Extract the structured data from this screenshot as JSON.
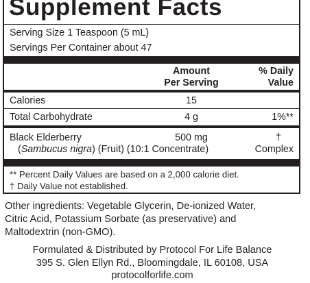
{
  "panel": {
    "title": "Supplement Facts",
    "serving_size": "Serving Size 1 Teaspoon (5 mL)",
    "servings_per_container": "Servings Per Container about 47",
    "header": {
      "amount_line1": "Amount",
      "amount_line2": "Per Serving",
      "dv_line1": "% Daily",
      "dv_line2": "Value"
    },
    "rows": [
      {
        "name": "Calories",
        "amount": "15",
        "dv": ""
      },
      {
        "name": "Total Carbohydrate",
        "amount": "4 g",
        "dv": "1%**"
      }
    ],
    "elderberry": {
      "name": "Black Elderberry",
      "open_paren": "(",
      "latin": "Sambucus nigra",
      "detail": ") (Fruit) (10:1 Concentrate)",
      "amount": "500 mg",
      "dv_symbol": "†",
      "dv_note": "Complex"
    },
    "footnotes": [
      "** Percent Daily Values are based on a 2,000 calorie diet.",
      "† Daily Value not established."
    ]
  },
  "other_ingredients": [
    "Other ingredients: Vegetable Glycerin, De-ionized Water,",
    "Citric Acid, Potassium Sorbate (as preservative) and",
    "Maltodextrin (non-GMO)."
  ],
  "distributor": [
    "Formulated & Distributed by Protocol For Life Balance",
    "395 S. Glen Ellyn Rd., Bloomingdale, IL 60108, USA",
    "protocolforlife.com"
  ]
}
